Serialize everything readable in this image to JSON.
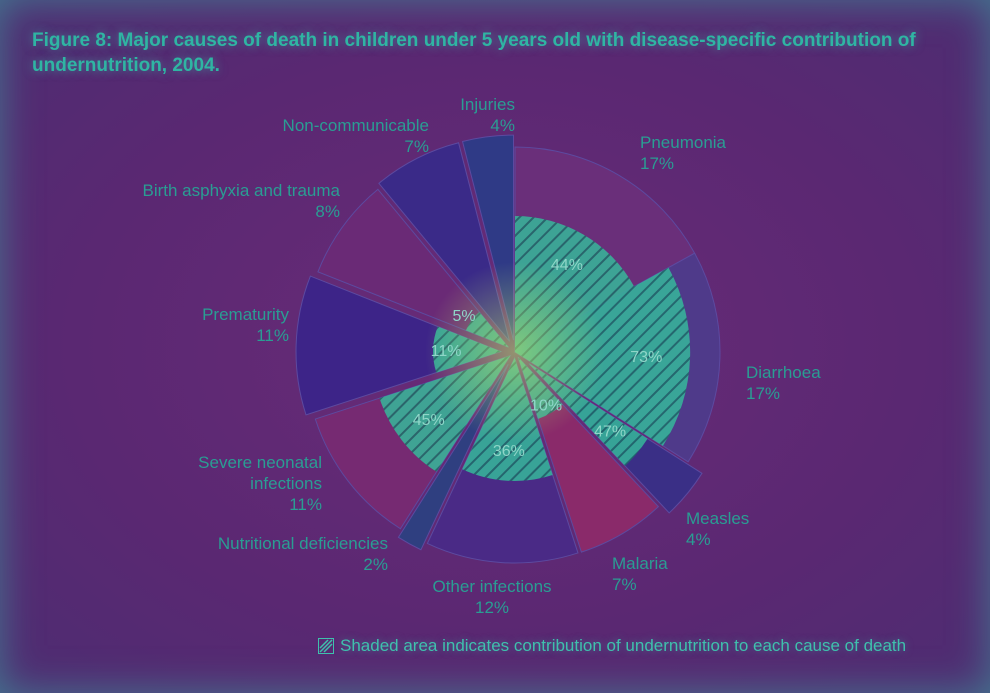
{
  "title": "Figure 8: Major causes of death in children under 5 years old with disease-specific contribution of undernutrition, 2004.",
  "legend_text": "Shaded area indicates contribution of undernutrition to each cause of death",
  "chart_data": {
    "type": "pie",
    "title": "Figure 8: Major causes of death in children under 5 years old with disease-specific contribution of undernutrition, 2004.",
    "slices": [
      {
        "label": "Pneumonia",
        "value": 17,
        "value_label": "17%",
        "undernutrition": 44,
        "undernutrition_label": "44%",
        "color": "#6a2f7a"
      },
      {
        "label": "Diarrhoea",
        "value": 17,
        "value_label": "17%",
        "undernutrition": 73,
        "undernutrition_label": "73%",
        "color": "#4f3a8a"
      },
      {
        "label": "Measles",
        "value": 4,
        "value_label": "4%",
        "undernutrition": 47,
        "undernutrition_label": "47%",
        "color": "#3a2f86"
      },
      {
        "label": "Malaria",
        "value": 7,
        "value_label": "7%",
        "undernutrition": 10,
        "undernutrition_label": "10%",
        "color": "#8a2a6a"
      },
      {
        "label": "Other infections",
        "value": 12,
        "value_label": "12%",
        "undernutrition": 36,
        "undernutrition_label": "36%",
        "color": "#4a2a86"
      },
      {
        "label": "Nutritional deficiencies",
        "value": 2,
        "value_label": "2%",
        "undernutrition": null,
        "undernutrition_label": "",
        "color": "#2f3f80"
      },
      {
        "label": "Severe neonatal infections",
        "value": 11,
        "value_label": "11%",
        "undernutrition": 45,
        "undernutrition_label": "45%",
        "color": "#762a72"
      },
      {
        "label": "Prematurity",
        "value": 11,
        "value_label": "11%",
        "undernutrition": 11,
        "undernutrition_label": "11%",
        "color": "#3d2488"
      },
      {
        "label": "Birth asphyxia and trauma",
        "value": 8,
        "value_label": "8%",
        "undernutrition": 5,
        "undernutrition_label": "5%",
        "color": "#6a2a76"
      },
      {
        "label": "Non-communicable",
        "value": 7,
        "value_label": "7%",
        "undernutrition": null,
        "undernutrition_label": "",
        "color": "#3a2a88"
      },
      {
        "label": "Injuries",
        "value": 4,
        "value_label": "4%",
        "undernutrition": null,
        "undernutrition_label": "",
        "color": "#2f3a86"
      }
    ]
  }
}
